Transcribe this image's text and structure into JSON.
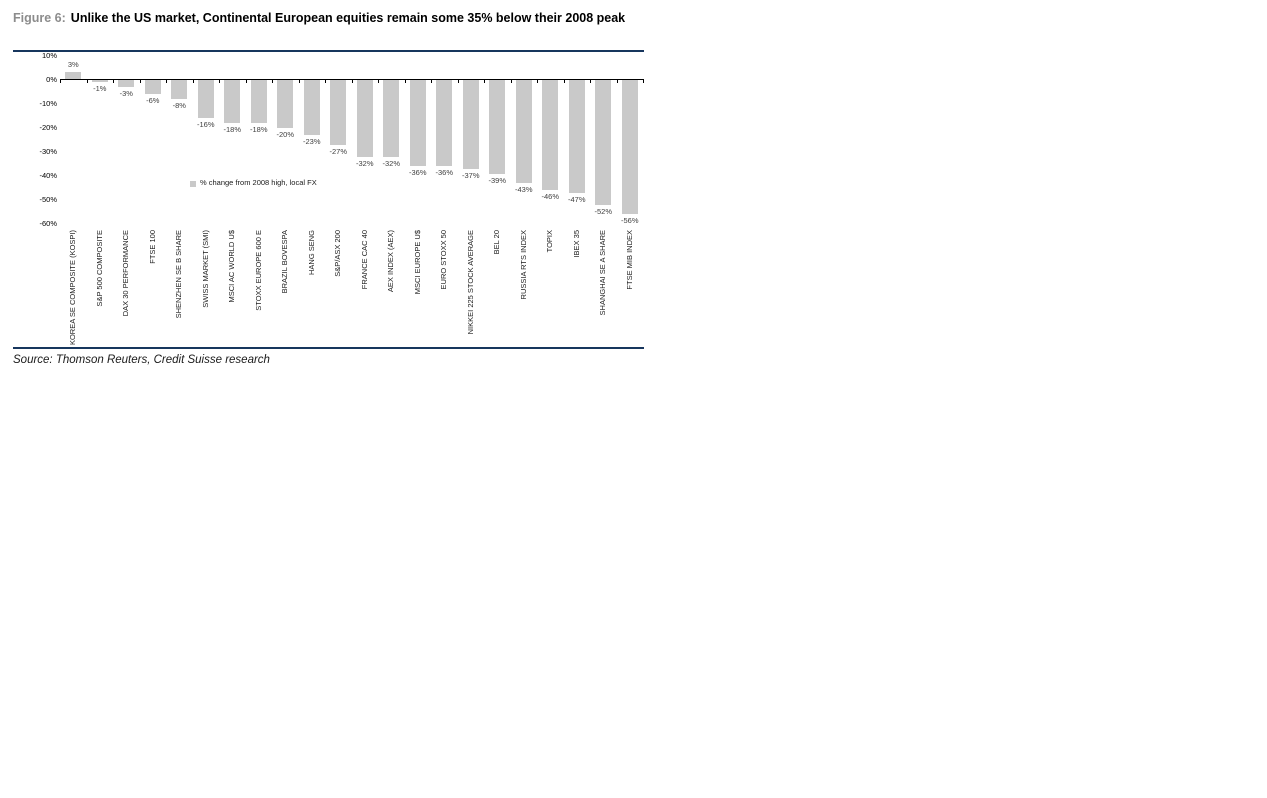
{
  "figure": {
    "label": "Figure 6:",
    "title": "Unlike the US market, Continental European equities remain some 35% below their 2008 peak"
  },
  "source": "Source: Thomson Reuters, Credit Suisse research",
  "colors": {
    "rule": "#17365d",
    "figure_label": "#8c8c8c",
    "bar": "#c9c9c9",
    "axis": "#000000",
    "value_label": "#404040"
  },
  "chart_data": {
    "type": "bar",
    "title": "",
    "legend": "% change from 2008 high, local FX",
    "legend_position": "inside-left-middle",
    "xlabel": "",
    "ylabel": "",
    "ylim": [
      -60,
      10
    ],
    "ytick_step": 10,
    "ytick_labels": [
      "10%",
      "0%",
      "-10%",
      "-20%",
      "-30%",
      "-40%",
      "-50%",
      "-60%"
    ],
    "grid": false,
    "categories": [
      "KOREA SE COMPOSITE (KOSPI)",
      "S&P 500 COMPOSITE",
      "DAX 30 PERFORMANCE",
      "FTSE 100",
      "SHENZHEN SE B SHARE",
      "SWISS MARKET (SMI)",
      "MSCI AC WORLD U$",
      "STOXX EUROPE 600 E",
      "BRAZIL BOVESPA",
      "HANG SENG",
      "S&P/ASX 200",
      "FRANCE CAC 40",
      "AEX INDEX (AEX)",
      "MSCI EUROPE U$",
      "EURO STOXX 50",
      "NIKKEI 225 STOCK AVERAGE",
      "BEL 20",
      "RUSSIA RTS INDEX",
      "TOPIX",
      "IBEX 35",
      "SHANGHAI SE A SHARE",
      "FTSE MIB INDEX"
    ],
    "values": [
      3,
      -1,
      -3,
      -6,
      -8,
      -16,
      -18,
      -18,
      -20,
      -23,
      -27,
      -32,
      -32,
      -36,
      -36,
      -37,
      -39,
      -43,
      -46,
      -47,
      -52,
      -56
    ],
    "value_labels": [
      "3%",
      "-1%",
      "-3%",
      "-6%",
      "-8%",
      "-16%",
      "-18%",
      "-18%",
      "-20%",
      "-23%",
      "-27%",
      "-32%",
      "-32%",
      "-36%",
      "-36%",
      "-37%",
      "-39%",
      "-43%",
      "-46%",
      "-47%",
      "-52%",
      "-56%"
    ]
  }
}
